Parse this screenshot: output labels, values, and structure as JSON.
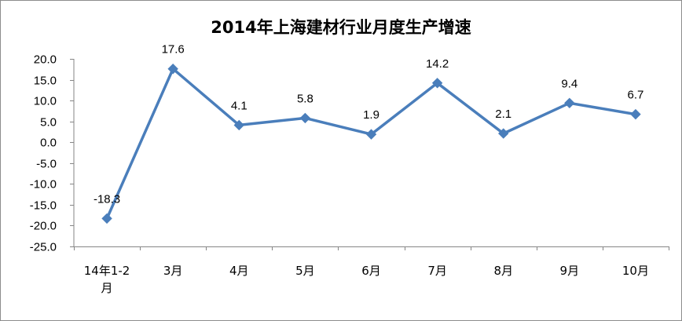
{
  "chart_data": {
    "type": "line",
    "title": "2014年上海建材行业月度生产增速",
    "categories": [
      "14年1-2月",
      "3月",
      "4月",
      "5月",
      "6月",
      "7月",
      "8月",
      "9月",
      "10月"
    ],
    "category_lines": [
      [
        "14年1-2",
        "月"
      ],
      [
        "3月"
      ],
      [
        "4月"
      ],
      [
        "5月"
      ],
      [
        "6月"
      ],
      [
        "7月"
      ],
      [
        "8月"
      ],
      [
        "9月"
      ],
      [
        "10月"
      ]
    ],
    "values": [
      -18.3,
      17.6,
      4.1,
      5.8,
      1.9,
      14.2,
      2.1,
      9.4,
      6.7
    ],
    "value_labels": [
      "-18.3",
      "17.6",
      "4.1",
      "5.8",
      "1.9",
      "14.2",
      "2.1",
      "9.4",
      "6.7"
    ],
    "ylim": [
      -25,
      20
    ],
    "yticks": [
      20,
      15,
      10,
      5,
      0,
      -5,
      -10,
      -15,
      -20,
      -25
    ],
    "ytick_labels": [
      "20.0",
      "15.0",
      "10.0",
      "5.0",
      "0.0",
      "-5.0",
      "-10.0",
      "-15.0",
      "-20.0",
      "-25.0"
    ],
    "grid": false,
    "legend": "none",
    "xlabel": "",
    "ylabel": "",
    "line_color": "#4a7ebb",
    "marker": "diamond"
  }
}
